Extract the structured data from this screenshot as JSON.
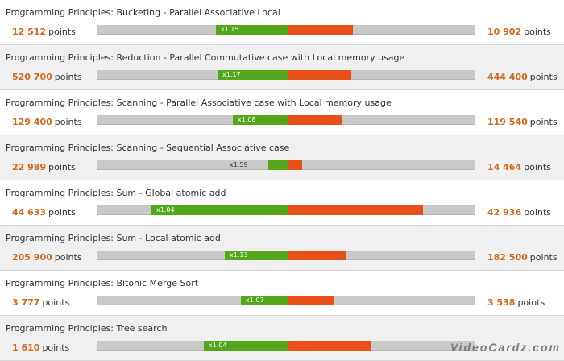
{
  "chart_data": {
    "type": "bar",
    "units": "points",
    "categories": [
      "Programming Principles: Bucketing - Parallel Associative Local",
      "Programming Principles: Reduction - Parallel Commutative case with Local memory usage",
      "Programming Principles: Scanning - Parallel Associative case with Local memory usage",
      "Programming Principles: Scanning - Sequential Associative case",
      "Programming Principles: Sum - Global atomic add",
      "Programming Principles: Sum - Local atomic add",
      "Programming Principles: Bitonic Merge Sort",
      "Programming Principles: Tree search"
    ],
    "series": [
      {
        "values": [
          12512,
          520700,
          129400,
          22989,
          44633,
          205900,
          3777,
          1610
        ]
      },
      {
        "values": [
          10902,
          444400,
          119540,
          14464,
          42936,
          182500,
          3538,
          null
        ]
      }
    ],
    "left_labels": [
      "12 512",
      "520 700",
      "129 400",
      "22 989",
      "44 633",
      "205 900",
      "3 777",
      "1 610"
    ],
    "right_labels": [
      "10 902",
      "444 400",
      "119 540",
      "14 464",
      "42 936",
      "182 500",
      "3 538",
      ""
    ],
    "ratios": [
      "x1.15",
      "x1.17",
      "x1.08",
      "x1.59",
      "x1.04",
      "x1.13",
      "x1.07",
      "x1.04"
    ],
    "colors": {
      "green": "#54a71b",
      "orange": "#e8501a",
      "track": "#c9c9c9",
      "number": "#d2691e"
    }
  },
  "watermark": "VideoCardz.com"
}
